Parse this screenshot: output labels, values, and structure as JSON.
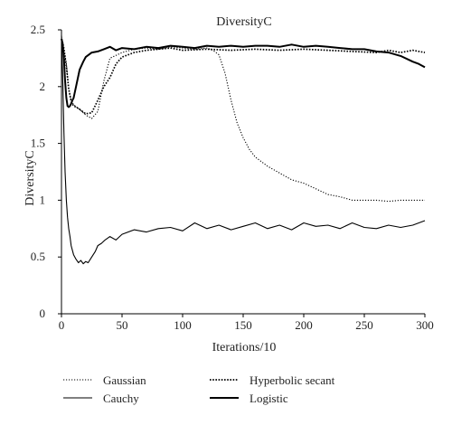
{
  "chart_data": {
    "type": "line",
    "title": "DiversityC",
    "xlabel": "Iterations/10",
    "ylabel": "DiversityC",
    "xlim": [
      0,
      300
    ],
    "ylim": [
      0,
      2.5
    ],
    "xticks": [
      0,
      50,
      100,
      150,
      200,
      250,
      300
    ],
    "yticks": [
      0,
      0.5,
      1,
      1.5,
      2,
      2.5
    ],
    "xtick_labels": [
      "0",
      "50",
      "100",
      "150",
      "200",
      "250",
      "300"
    ],
    "ytick_labels": [
      "0",
      "0.5",
      "1",
      "1.5",
      "2",
      "2.5"
    ],
    "grid": false,
    "legend_position": "bottom",
    "series": [
      {
        "name": "Gaussian",
        "style": "dotted-fine",
        "color": "#000000",
        "x": [
          0,
          2,
          4,
          6,
          8,
          10,
          15,
          20,
          25,
          30,
          35,
          40,
          50,
          60,
          70,
          80,
          90,
          100,
          110,
          120,
          125,
          130,
          135,
          140,
          145,
          150,
          155,
          160,
          170,
          180,
          190,
          200,
          210,
          220,
          230,
          240,
          250,
          260,
          270,
          280,
          290,
          300
        ],
        "y": [
          2.44,
          2.35,
          2.2,
          1.98,
          1.88,
          1.84,
          1.8,
          1.75,
          1.72,
          1.78,
          2.05,
          2.25,
          2.3,
          2.33,
          2.34,
          2.33,
          2.35,
          2.34,
          2.33,
          2.34,
          2.32,
          2.28,
          2.12,
          1.88,
          1.68,
          1.55,
          1.45,
          1.38,
          1.3,
          1.24,
          1.18,
          1.15,
          1.1,
          1.05,
          1.03,
          1.0,
          1.0,
          1.0,
          0.99,
          1.0,
          1.0,
          1.0
        ]
      },
      {
        "name": "Cauchy",
        "style": "solid-thin",
        "color": "#000000",
        "x": [
          0,
          1,
          2,
          3,
          4,
          5,
          6,
          7,
          8,
          10,
          12,
          14,
          16,
          18,
          20,
          22,
          25,
          28,
          30,
          33,
          36,
          40,
          45,
          50,
          60,
          70,
          80,
          90,
          100,
          110,
          120,
          130,
          140,
          150,
          160,
          170,
          180,
          190,
          200,
          210,
          220,
          230,
          240,
          250,
          260,
          270,
          280,
          290,
          295,
          300
        ],
        "y": [
          2.45,
          2.1,
          1.6,
          1.25,
          1.0,
          0.85,
          0.75,
          0.68,
          0.6,
          0.52,
          0.48,
          0.45,
          0.47,
          0.44,
          0.46,
          0.45,
          0.5,
          0.55,
          0.6,
          0.62,
          0.65,
          0.68,
          0.65,
          0.7,
          0.74,
          0.72,
          0.75,
          0.76,
          0.73,
          0.8,
          0.75,
          0.78,
          0.74,
          0.77,
          0.8,
          0.75,
          0.78,
          0.74,
          0.8,
          0.77,
          0.78,
          0.75,
          0.8,
          0.76,
          0.75,
          0.78,
          0.76,
          0.78,
          0.8,
          0.82
        ]
      },
      {
        "name": "Hyperbolic secant",
        "style": "dotted-bold",
        "color": "#000000",
        "x": [
          0,
          2,
          4,
          6,
          8,
          10,
          12,
          15,
          20,
          25,
          30,
          35,
          40,
          45,
          50,
          60,
          70,
          80,
          90,
          100,
          120,
          140,
          160,
          180,
          200,
          220,
          240,
          260,
          270,
          280,
          290,
          300
        ],
        "y": [
          2.42,
          2.32,
          2.18,
          1.98,
          1.87,
          1.83,
          1.82,
          1.8,
          1.76,
          1.77,
          1.88,
          2.0,
          2.08,
          2.2,
          2.26,
          2.3,
          2.32,
          2.33,
          2.34,
          2.32,
          2.33,
          2.32,
          2.33,
          2.32,
          2.33,
          2.32,
          2.31,
          2.3,
          2.32,
          2.3,
          2.32,
          2.3
        ]
      },
      {
        "name": "Logistic",
        "style": "solid-bold",
        "color": "#000000",
        "x": [
          0,
          1,
          2,
          3,
          4,
          5,
          6,
          7,
          8,
          9,
          10,
          12,
          15,
          18,
          20,
          25,
          30,
          35,
          40,
          45,
          50,
          60,
          70,
          80,
          90,
          100,
          110,
          120,
          130,
          140,
          150,
          160,
          170,
          180,
          190,
          200,
          210,
          220,
          230,
          240,
          250,
          260,
          270,
          280,
          290,
          295,
          300
        ],
        "y": [
          2.42,
          2.38,
          2.25,
          2.05,
          1.9,
          1.83,
          1.82,
          1.83,
          1.85,
          1.88,
          1.9,
          2.0,
          2.15,
          2.22,
          2.26,
          2.3,
          2.31,
          2.33,
          2.35,
          2.32,
          2.34,
          2.33,
          2.35,
          2.34,
          2.36,
          2.35,
          2.34,
          2.36,
          2.35,
          2.36,
          2.35,
          2.36,
          2.36,
          2.35,
          2.37,
          2.35,
          2.36,
          2.35,
          2.34,
          2.33,
          2.33,
          2.31,
          2.3,
          2.27,
          2.22,
          2.2,
          2.17
        ]
      }
    ]
  }
}
